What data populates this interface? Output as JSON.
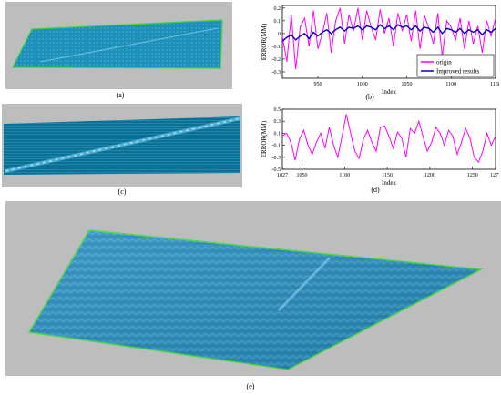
{
  "captions": {
    "a": "(a)",
    "b": "(b)",
    "c": "(c)",
    "d": "(d)",
    "e": "(e)"
  },
  "chart_data": [
    {
      "type": "line",
      "panel": "b",
      "xlabel": "Index",
      "ylabel": "ERROR(MM)",
      "xlim": [
        910,
        1150
      ],
      "ylim": [
        -0.35,
        0.22
      ],
      "xticks": [
        950,
        1000,
        1050,
        1100,
        1150
      ],
      "yticks": [
        0.2,
        0.1,
        0,
        -0.1,
        -0.2,
        -0.3
      ],
      "ytick_labels": [
        "0.2",
        "0.1",
        "0",
        "-0.1",
        "-0.2",
        "-0.3"
      ],
      "legend": "bottom-right",
      "series": [
        {
          "name": "origin",
          "color": "#ff00ff",
          "x": [
            910,
            915,
            920,
            925,
            930,
            935,
            940,
            945,
            950,
            955,
            960,
            965,
            970,
            975,
            980,
            985,
            990,
            995,
            1000,
            1005,
            1010,
            1015,
            1020,
            1025,
            1030,
            1035,
            1040,
            1045,
            1050,
            1055,
            1060,
            1065,
            1070,
            1075,
            1080,
            1085,
            1090,
            1095,
            1100,
            1105,
            1110,
            1115,
            1120,
            1125,
            1130,
            1135,
            1140,
            1145,
            1150
          ],
          "y": [
            -0.02,
            -0.22,
            0.15,
            -0.28,
            0.05,
            0.12,
            -0.1,
            0.18,
            -0.12,
            0.0,
            0.16,
            -0.15,
            0.1,
            0.2,
            -0.08,
            0.15,
            0.02,
            0.2,
            -0.05,
            0.18,
            0.05,
            -0.05,
            0.19,
            0.0,
            0.12,
            -0.1,
            0.16,
            0.02,
            0.15,
            -0.06,
            0.18,
            -0.12,
            0.14,
            0.04,
            -0.08,
            0.16,
            -0.18,
            0.1,
            0.05,
            -0.05,
            0.12,
            -0.12,
            0.1,
            -0.08,
            0.06,
            -0.15,
            0.1,
            -0.02,
            0.12
          ]
        },
        {
          "name": "Improved results",
          "color": "#0000cc",
          "x": [
            910,
            915,
            920,
            925,
            930,
            935,
            940,
            945,
            950,
            955,
            960,
            965,
            970,
            975,
            980,
            985,
            990,
            995,
            1000,
            1005,
            1010,
            1015,
            1020,
            1025,
            1030,
            1035,
            1040,
            1045,
            1050,
            1055,
            1060,
            1065,
            1070,
            1075,
            1080,
            1085,
            1090,
            1095,
            1100,
            1105,
            1110,
            1115,
            1120,
            1125,
            1130,
            1135,
            1140,
            1145,
            1150
          ],
          "y": [
            -0.06,
            -0.03,
            -0.01,
            -0.05,
            -0.02,
            0.0,
            -0.04,
            0.01,
            -0.02,
            0.01,
            0.03,
            0.0,
            0.03,
            0.05,
            0.02,
            0.05,
            0.04,
            0.06,
            0.03,
            0.06,
            0.05,
            0.03,
            0.07,
            0.04,
            0.06,
            0.03,
            0.07,
            0.05,
            0.06,
            0.03,
            0.06,
            0.02,
            0.05,
            0.04,
            0.01,
            0.05,
            0.0,
            0.04,
            0.03,
            0.01,
            0.04,
            0.0,
            0.03,
            0.01,
            0.03,
            -0.01,
            0.03,
            0.01,
            0.04
          ]
        }
      ]
    },
    {
      "type": "line",
      "panel": "d",
      "xlabel": "Index",
      "ylabel": "ERROR(MM)",
      "xlim": [
        1027,
        1277
      ],
      "ylim": [
        -0.5,
        0.5
      ],
      "xticks": [
        1027,
        1050,
        1100,
        1150,
        1200,
        1250,
        1277
      ],
      "yticks": [
        0.5,
        0.3,
        0.1,
        -0.1,
        -0.3,
        -0.5
      ],
      "ytick_labels": [
        "0.5",
        "0.3",
        "0.1",
        "-0.1",
        "-0.3",
        "-0.5"
      ],
      "series": [
        {
          "color": "#ff00ff",
          "x": [
            1027,
            1032,
            1037,
            1042,
            1047,
            1052,
            1057,
            1062,
            1067,
            1072,
            1077,
            1082,
            1087,
            1092,
            1097,
            1102,
            1107,
            1112,
            1117,
            1122,
            1127,
            1132,
            1137,
            1142,
            1147,
            1152,
            1157,
            1162,
            1167,
            1172,
            1177,
            1182,
            1187,
            1192,
            1197,
            1202,
            1207,
            1212,
            1217,
            1222,
            1227,
            1232,
            1237,
            1242,
            1247,
            1252,
            1257,
            1262,
            1267,
            1272,
            1277
          ],
          "y": [
            0.05,
            0.1,
            -0.05,
            -0.35,
            0.0,
            0.15,
            -0.1,
            -0.25,
            -0.05,
            0.1,
            -0.15,
            0.2,
            -0.1,
            -0.3,
            0.05,
            0.42,
            0.1,
            -0.2,
            -0.32,
            0.0,
            0.15,
            -0.05,
            -0.2,
            0.2,
            0.22,
            0.05,
            -0.15,
            0.12,
            0.02,
            -0.3,
            0.18,
            0.1,
            0.3,
            0.05,
            -0.2,
            -0.05,
            0.2,
            0.1,
            -0.1,
            0.15,
            0.05,
            -0.25,
            -0.05,
            0.18,
            0.02,
            -0.3,
            -0.38,
            -0.2,
            0.1,
            -0.1,
            0.05
          ]
        }
      ]
    }
  ]
}
